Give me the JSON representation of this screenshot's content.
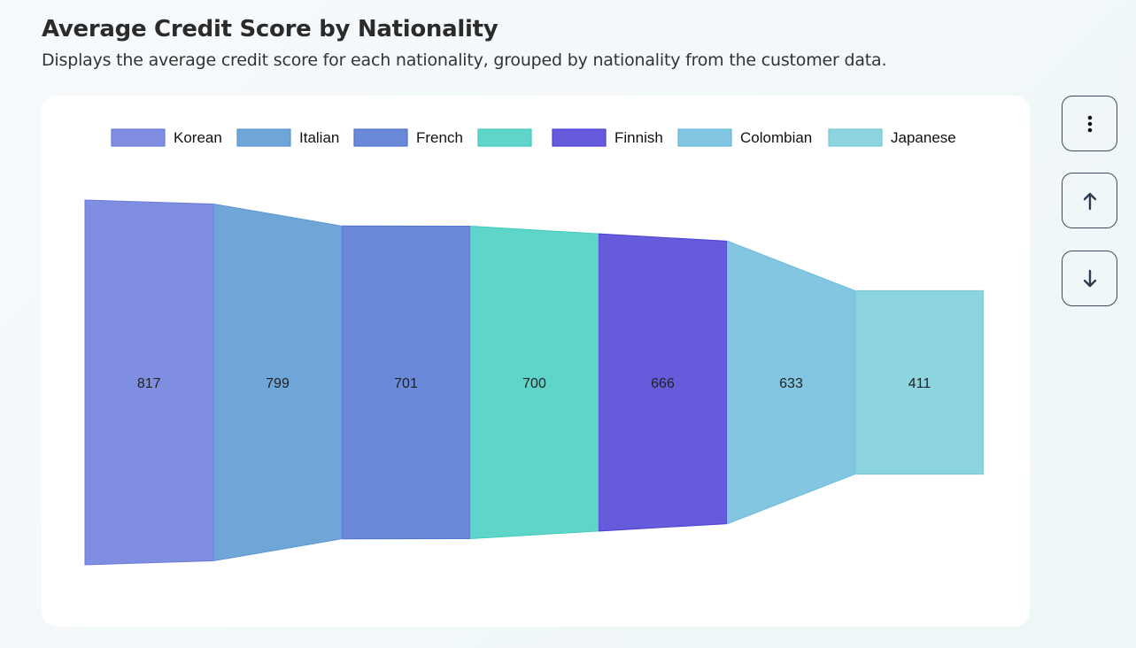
{
  "header": {
    "title": "Average Credit Score by Nationality",
    "subtitle": "Displays the average credit score for each nationality, grouped by nationality from the customer data."
  },
  "buttons": {
    "menu": "more-options",
    "up": "move-up",
    "down": "move-down"
  },
  "chart_data": {
    "type": "funnel",
    "title": "Average Credit Score by Nationality",
    "categories": [
      "Korean",
      "Italian",
      "French",
      "",
      "Finnish",
      "Colombian",
      "Japanese"
    ],
    "values": [
      817,
      799,
      701,
      700,
      666,
      633,
      411
    ],
    "labels": [
      "817",
      "799",
      "701",
      "700",
      "666",
      "633",
      "411"
    ],
    "colors": [
      "#7f8ee0",
      "#6ea6d8",
      "#6a8ad9",
      "#5fd5c9",
      "#665bdb",
      "#82c6e2",
      "#8cd5df"
    ],
    "borders": [
      "#6a78dc",
      "#5b95d6",
      "#4f72d4",
      "#3fcbbd",
      "#4b3fd6",
      "#6bb9dc",
      "#74c8d6"
    ],
    "legend_position": "top"
  }
}
